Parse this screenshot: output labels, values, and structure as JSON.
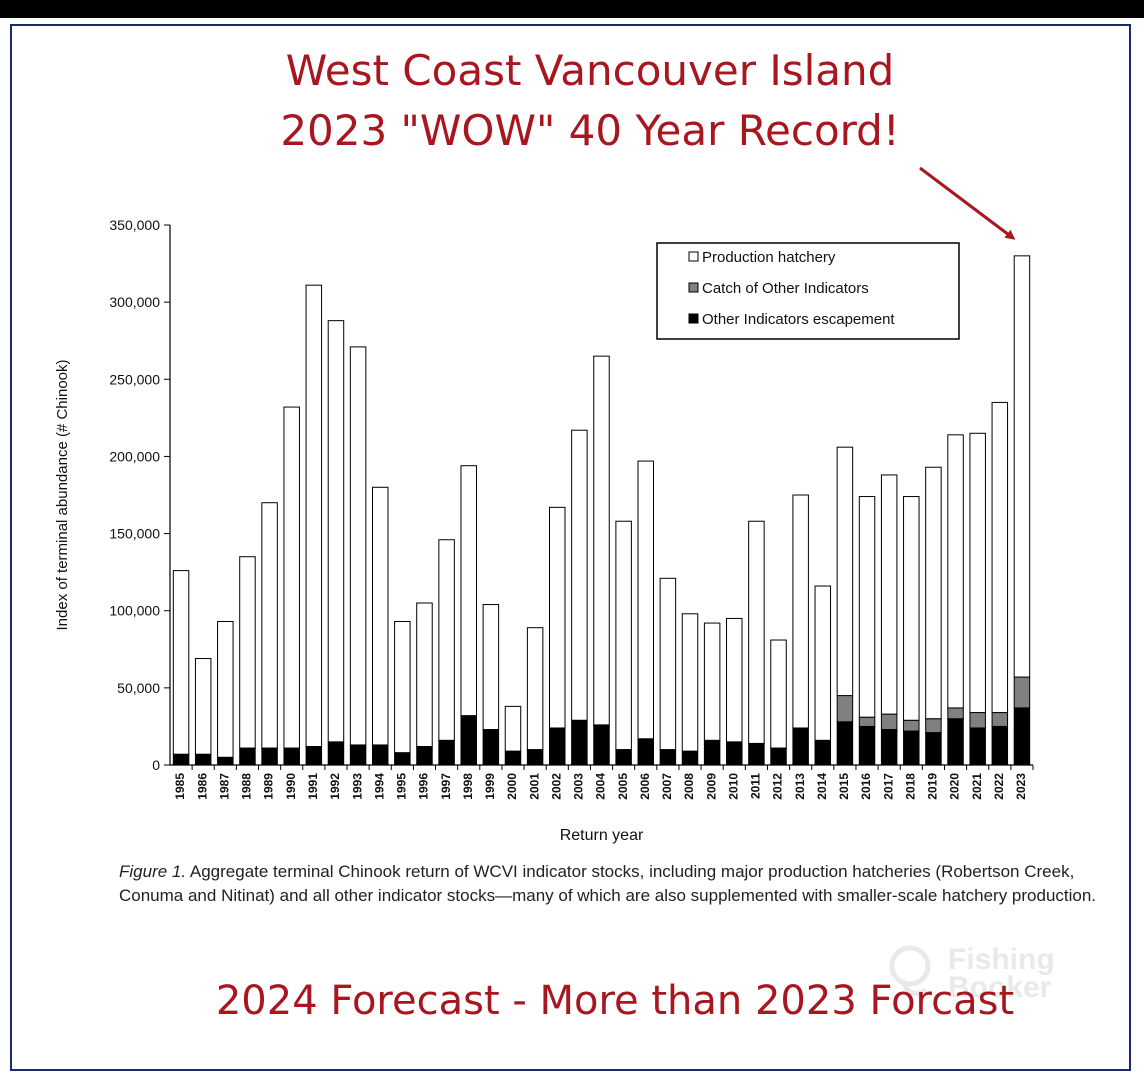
{
  "headline": {
    "line1": "West Coast Vancouver Island",
    "line2": "2023 \"WOW\" 40 Year Record!"
  },
  "caption": {
    "figure_label": "Figure 1.",
    "text": " Aggregate terminal Chinook return of WCVI indicator stocks, including major production hatcheries (Robertson Creek, Conuma and Nitinat) and all other indicator stocks—many of which are also supplemented with smaller-scale hatchery production."
  },
  "footer": {
    "text": "2024 Forecast - More than 2023 Forcast"
  },
  "watermark": {
    "line1": "Fishing",
    "line2": "Booker"
  },
  "colors": {
    "headline": "#a8161f",
    "production_hatchery": "#ffffff",
    "catch_other": "#808080",
    "escapement": "#000000",
    "frame": "#1b2a6b"
  },
  "chart_data": {
    "type": "bar",
    "stacked": true,
    "xlabel": "Return year",
    "ylabel": "Index of terminal abundance (# Chinook)",
    "ylim": [
      0,
      350000
    ],
    "yticks": [
      0,
      50000,
      100000,
      150000,
      200000,
      250000,
      300000,
      350000
    ],
    "ytick_labels": [
      "0",
      "50,000",
      "100,000",
      "150,000",
      "200,000",
      "250,000",
      "300,000",
      "350,000"
    ],
    "legend_position": "top-right",
    "categories": [
      "1985",
      "1986",
      "1987",
      "1988",
      "1989",
      "1990",
      "1991",
      "1992",
      "1993",
      "1994",
      "1995",
      "1996",
      "1997",
      "1998",
      "1999",
      "2000",
      "2001",
      "2002",
      "2003",
      "2004",
      "2005",
      "2006",
      "2007",
      "2008",
      "2009",
      "2010",
      "2011",
      "2012",
      "2013",
      "2014",
      "2015",
      "2016",
      "2017",
      "2018",
      "2019",
      "2020",
      "2021",
      "2022",
      "2023"
    ],
    "series": [
      {
        "name": "Other Indicators escapement",
        "color": "#000000",
        "values": [
          7000,
          7000,
          5000,
          11000,
          11000,
          11000,
          12000,
          15000,
          13000,
          13000,
          8000,
          12000,
          16000,
          32000,
          23000,
          9000,
          10000,
          24000,
          29000,
          26000,
          10000,
          17000,
          10000,
          9000,
          16000,
          15000,
          14000,
          11000,
          24000,
          16000,
          28000,
          25000,
          23000,
          22000,
          21000,
          30000,
          24000,
          25000,
          37000
        ]
      },
      {
        "name": "Catch of Other Indicators",
        "color": "#808080",
        "values": [
          0,
          0,
          0,
          0,
          0,
          0,
          0,
          0,
          0,
          0,
          0,
          0,
          0,
          0,
          0,
          0,
          0,
          0,
          0,
          0,
          0,
          0,
          0,
          0,
          0,
          0,
          0,
          0,
          0,
          0,
          17000,
          6000,
          10000,
          7000,
          9000,
          7000,
          10000,
          9000,
          20000
        ]
      },
      {
        "name": "Production hatchery",
        "color": "#ffffff",
        "values": [
          119000,
          62000,
          88000,
          124000,
          159000,
          221000,
          299000,
          273000,
          258000,
          167000,
          85000,
          93000,
          130000,
          162000,
          81000,
          29000,
          79000,
          143000,
          188000,
          239000,
          148000,
          180000,
          111000,
          89000,
          76000,
          80000,
          144000,
          70000,
          151000,
          100000,
          161000,
          143000,
          155000,
          145000,
          163000,
          177000,
          181000,
          201000,
          273000
        ]
      }
    ]
  }
}
